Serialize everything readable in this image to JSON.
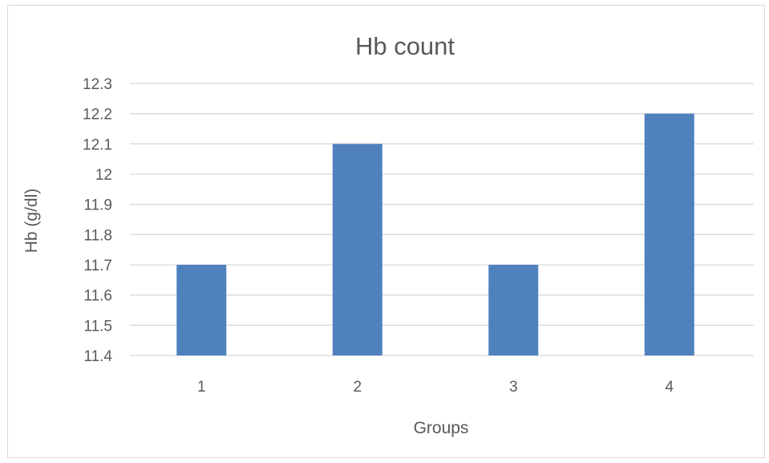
{
  "chart_data": {
    "type": "bar",
    "title": "Hb count",
    "xlabel": "Groups",
    "ylabel": "Hb (g/dl)",
    "categories": [
      "1",
      "2",
      "3",
      "4"
    ],
    "values": [
      11.7,
      12.1,
      11.7,
      12.2
    ],
    "ylim": [
      11.4,
      12.3
    ],
    "yticks": [
      "11.4",
      "11.5",
      "11.6",
      "11.7",
      "11.8",
      "11.9",
      "12",
      "12.1",
      "12.2",
      "12.3"
    ],
    "grid": true,
    "legend": "none",
    "bar_color": "#4f81bd",
    "grid_color": "#d9d9d9",
    "text_color": "#595959"
  }
}
